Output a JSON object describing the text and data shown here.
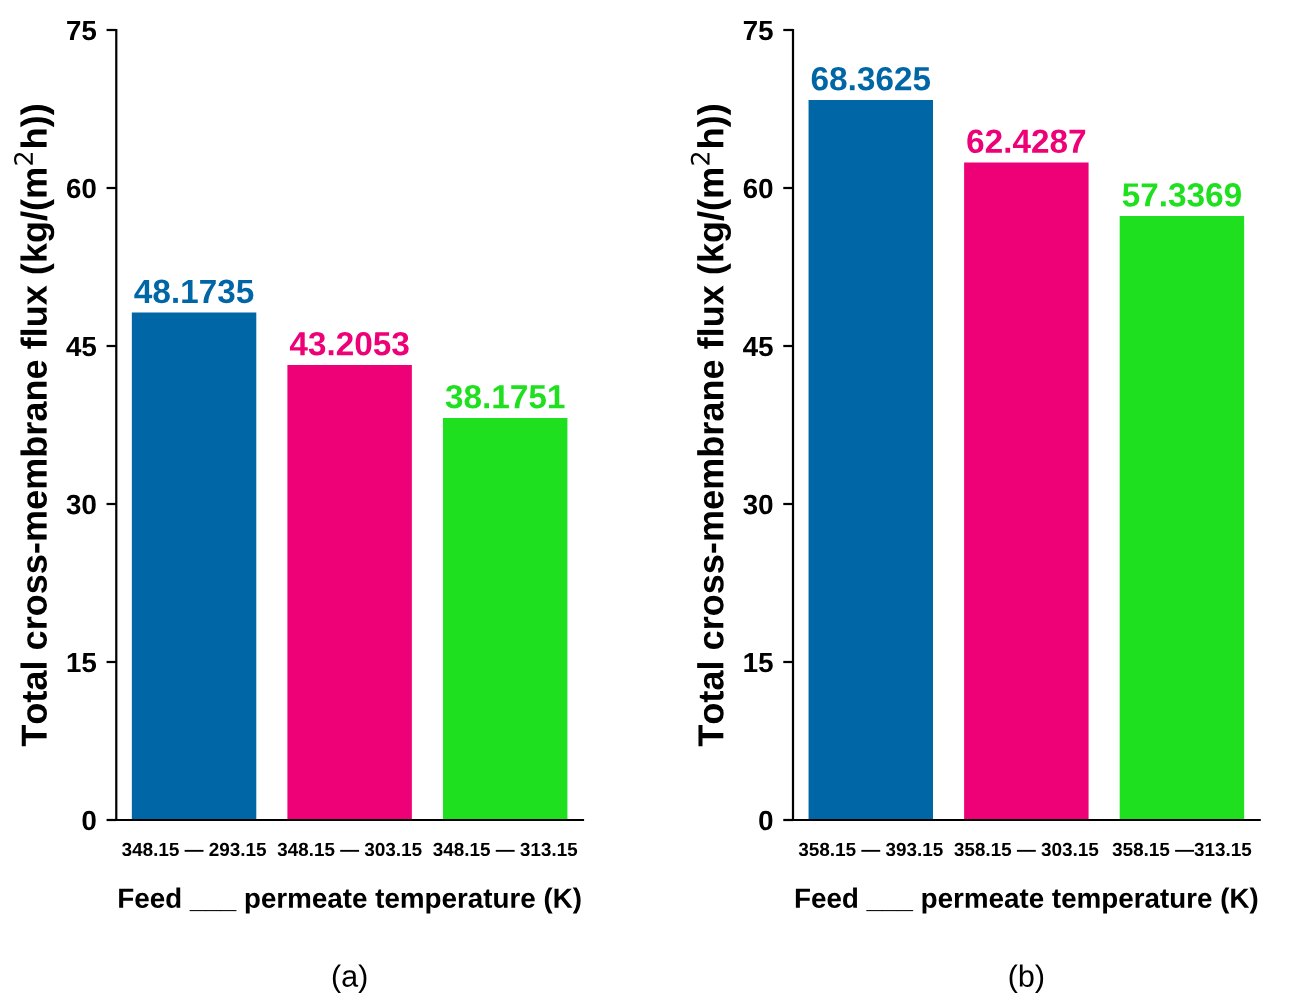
{
  "chart_data": [
    {
      "type": "bar",
      "categories": [
        "348.15 — 293.15",
        "348.15 — 303.15",
        "348.15 — 313.15"
      ],
      "values": [
        48.1735,
        43.2053,
        38.1751
      ],
      "colors": [
        "#0066a6",
        "#ee0077",
        "#1ee01e"
      ],
      "data_labels": true,
      "ylim": [
        0,
        75
      ],
      "yticks": [
        0,
        15,
        30,
        45,
        60,
        75
      ],
      "ylabel": "Total cross-membrane flux (kg/(m$^{2}$h))",
      "xlabel": "Feed ___ permeate temperature (K)",
      "annotations": [
        "(a)"
      ],
      "grid": false,
      "legend": false
    },
    {
      "type": "bar",
      "categories": [
        "358.15 — 393.15",
        "358.15 — 303.15",
        "358.15 —313.15"
      ],
      "values": [
        68.3625,
        62.4287,
        57.3369
      ],
      "colors": [
        "#0066a6",
        "#ee0077",
        "#1ee01e"
      ],
      "data_labels": true,
      "ylim": [
        0,
        75
      ],
      "yticks": [
        0,
        15,
        30,
        45,
        60,
        75
      ],
      "ylabel": "Total cross-membrane flux (kg/(m$^{2}$h))",
      "xlabel": "Feed ___ permeate temperature (K)",
      "annotations": [
        "(b)"
      ],
      "grid": false,
      "legend": false
    }
  ]
}
